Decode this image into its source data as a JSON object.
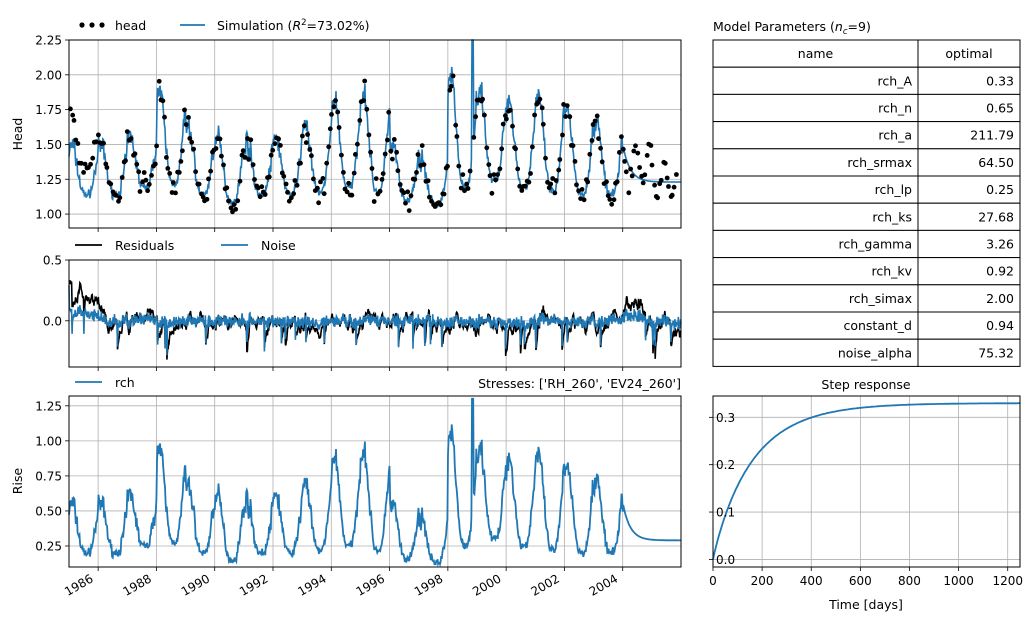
{
  "chart_data": [
    {
      "id": "head_panel",
      "type": "line+scatter",
      "ylabel": "Head",
      "ylim": [
        0.9,
        2.25
      ],
      "yticks": [
        "1.00",
        "1.25",
        "1.50",
        "1.75",
        "2.00",
        "2.25"
      ],
      "xlim": [
        1985.0,
        2006.0
      ],
      "grid": true,
      "legend": "above-left",
      "series": [
        {
          "name": "head",
          "style": "dots",
          "color": "#000000"
        },
        {
          "name": "Simulation ($R^2$=73.02%)",
          "name_text": "Simulation (",
          "name_sup_R": "R",
          "name_sup": "2",
          "name_rest": "=73.02%)",
          "style": "line",
          "color": "#1f77b4"
        }
      ]
    },
    {
      "id": "residual_panel",
      "type": "line",
      "ylim": [
        -0.38,
        0.5
      ],
      "yticks": [
        "0.0",
        "0.5"
      ],
      "xlim": [
        1985.0,
        2006.0
      ],
      "grid": true,
      "legend": "above-left",
      "series": [
        {
          "name": "Residuals",
          "color": "#000000"
        },
        {
          "name": "Noise",
          "color": "#1f77b4"
        }
      ]
    },
    {
      "id": "contribution_panel",
      "type": "line",
      "ylabel": "Rise",
      "ylim": [
        0.1,
        1.32
      ],
      "yticks": [
        "0.25",
        "0.50",
        "0.75",
        "1.00",
        "1.25"
      ],
      "xlim": [
        1985.0,
        2006.0
      ],
      "xticks": [
        "1986",
        "1988",
        "1990",
        "1992",
        "1994",
        "1996",
        "1998",
        "2000",
        "2002",
        "2004"
      ],
      "xtick_values": [
        1986,
        1988,
        1990,
        1992,
        1994,
        1996,
        1998,
        2000,
        2002,
        2004
      ],
      "grid": true,
      "legend": "above-left",
      "annotation": "Stresses: ['RH_260', 'EV24_260']",
      "series": [
        {
          "name": "rch",
          "color": "#1f77b4"
        }
      ]
    },
    {
      "id": "step_panel",
      "type": "line",
      "title": "Step response",
      "xlabel": "Time [days]",
      "xlim": [
        0,
        1250
      ],
      "xticks": [
        "0",
        "200",
        "400",
        "600",
        "800",
        "1000",
        "1200"
      ],
      "xtick_values": [
        0,
        200,
        400,
        600,
        800,
        1000,
        1200
      ],
      "ylim": [
        -0.016,
        0.345
      ],
      "yticks": [
        "0.0",
        "0.1",
        "0.2",
        "0.3"
      ],
      "ytick_values": [
        0,
        0.1,
        0.2,
        0.3
      ],
      "grid": true,
      "series": [
        {
          "name": "step",
          "color": "#1f77b4",
          "gain": 0.33,
          "scale_days": 211.79,
          "shape": 0.65
        }
      ]
    },
    {
      "id": "parameter_table",
      "type": "table",
      "title_text": "Model Parameters (",
      "title_sub_n": "n",
      "title_sub": "c",
      "title_rest": "=9)",
      "columns": [
        "name",
        "optimal"
      ],
      "rows": [
        [
          "rch_A",
          "0.33"
        ],
        [
          "rch_n",
          "0.65"
        ],
        [
          "rch_a",
          "211.79"
        ],
        [
          "rch_srmax",
          "64.50"
        ],
        [
          "rch_lp",
          "0.25"
        ],
        [
          "rch_ks",
          "27.68"
        ],
        [
          "rch_gamma",
          "3.26"
        ],
        [
          "rch_kv",
          "0.92"
        ],
        [
          "rch_simax",
          "2.00"
        ],
        [
          "constant_d",
          "0.94"
        ],
        [
          "noise_alpha",
          "75.32"
        ]
      ]
    }
  ]
}
